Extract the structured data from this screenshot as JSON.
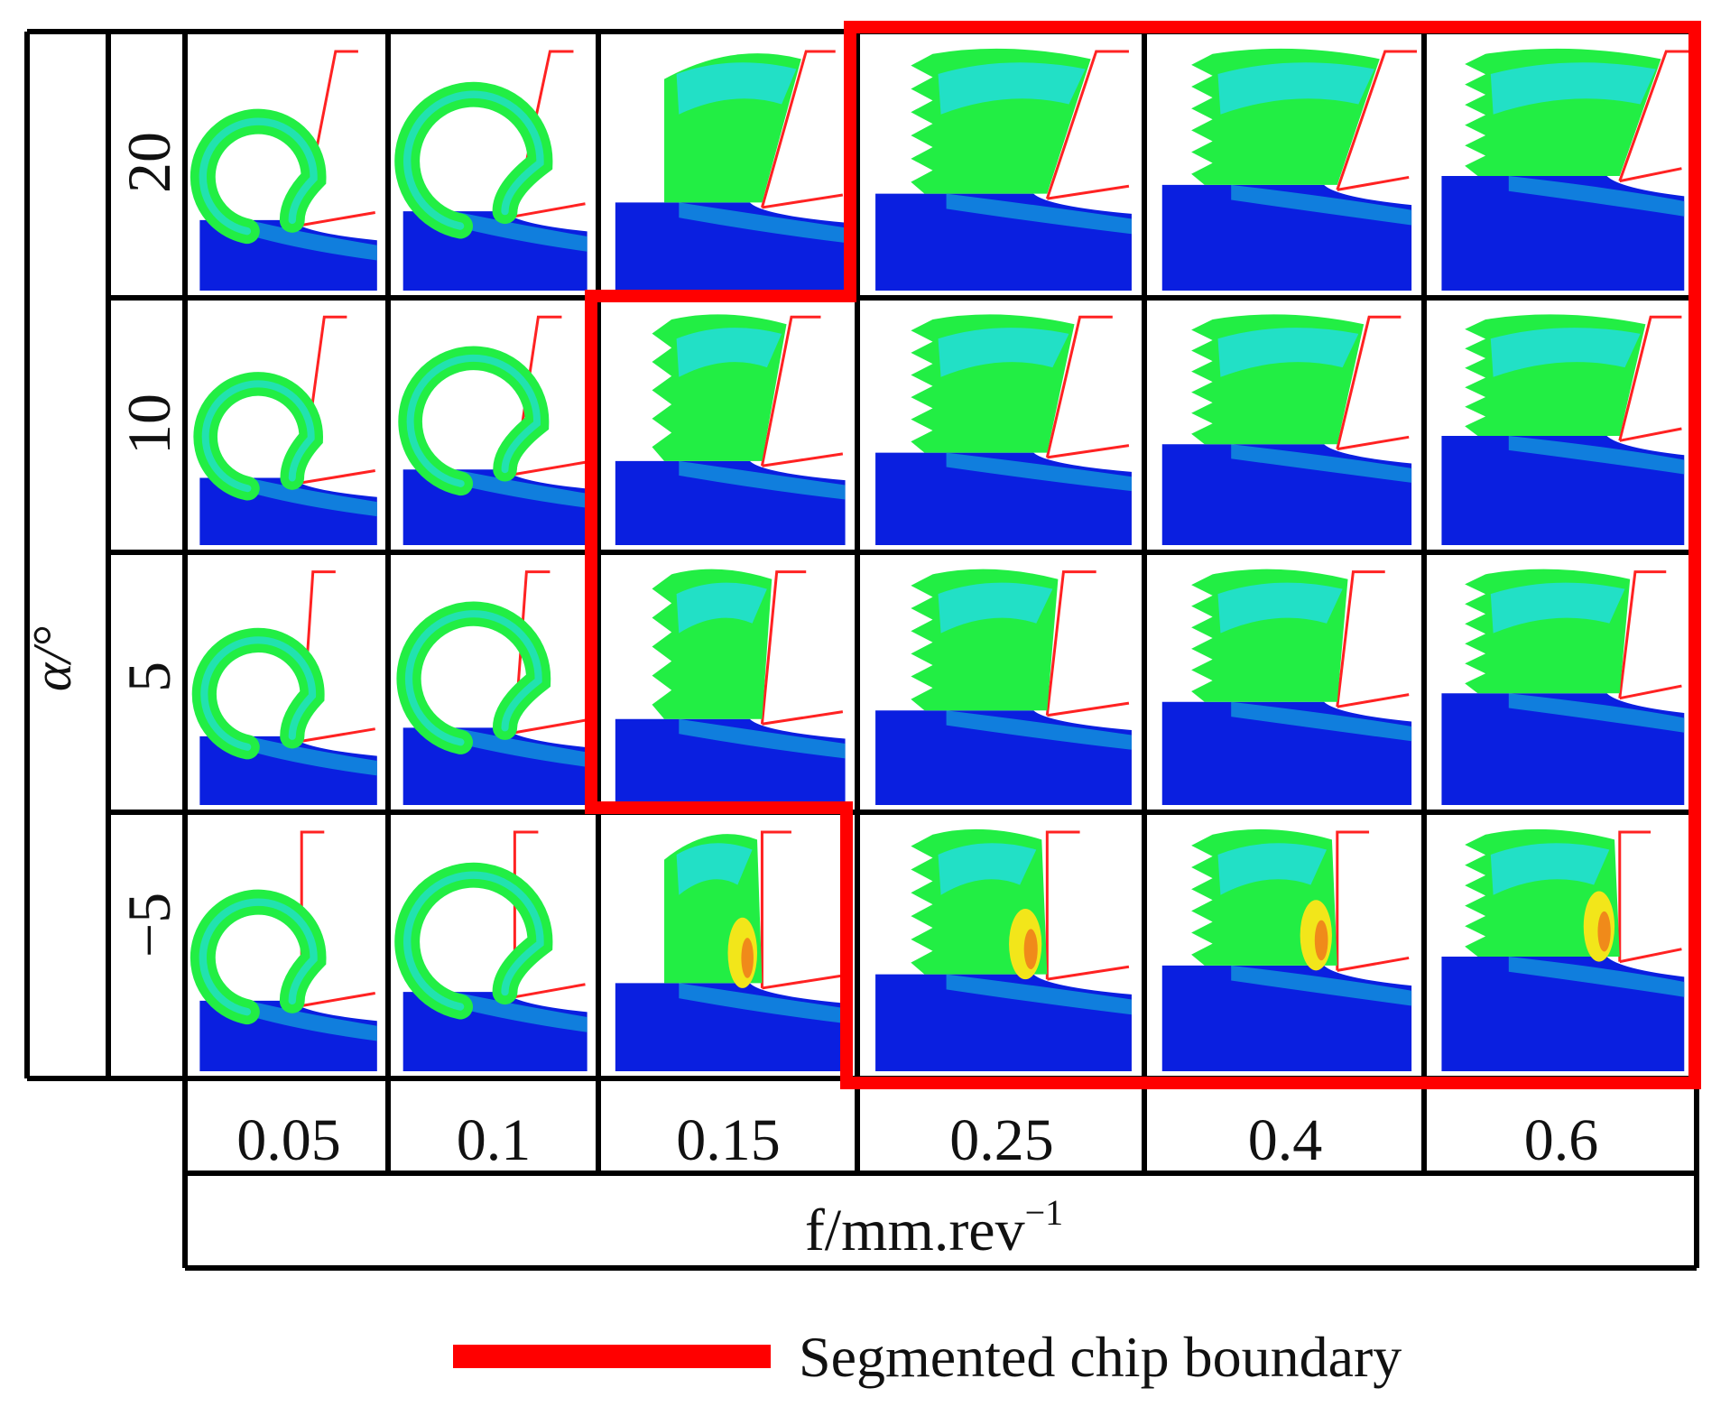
{
  "axis": {
    "y_label": "α/°",
    "x_label_main": "f/mm.rev",
    "x_label_sup": "−1"
  },
  "rake_angles": [
    "20",
    "10",
    "5",
    "−5"
  ],
  "feeds": [
    "0.05",
    "0.1",
    "0.15",
    "0.25",
    "0.4",
    "0.6"
  ],
  "chip_type": [
    [
      "continuous",
      "continuous",
      "continuous",
      "segmented",
      "segmented",
      "segmented"
    ],
    [
      "continuous",
      "continuous",
      "segmented",
      "segmented",
      "segmented",
      "segmented"
    ],
    [
      "continuous",
      "continuous",
      "segmented",
      "segmented",
      "segmented",
      "segmented"
    ],
    [
      "continuous",
      "continuous",
      "continuous",
      "segmented",
      "segmented",
      "segmented"
    ]
  ],
  "legend": {
    "label": "Segmented chip boundary",
    "color": "#ff0000"
  },
  "colors": {
    "boundary": "#ff0000",
    "grid": "#000000",
    "chip_green": "#22ee44",
    "chip_cyan": "#22dddd",
    "chip_blue": "#1188dd",
    "workpiece_blue": "#0a1fe0",
    "hot_yellow": "#f2e61a",
    "hot_orange": "#f08a1a",
    "tool_outline": "#ff2222"
  }
}
